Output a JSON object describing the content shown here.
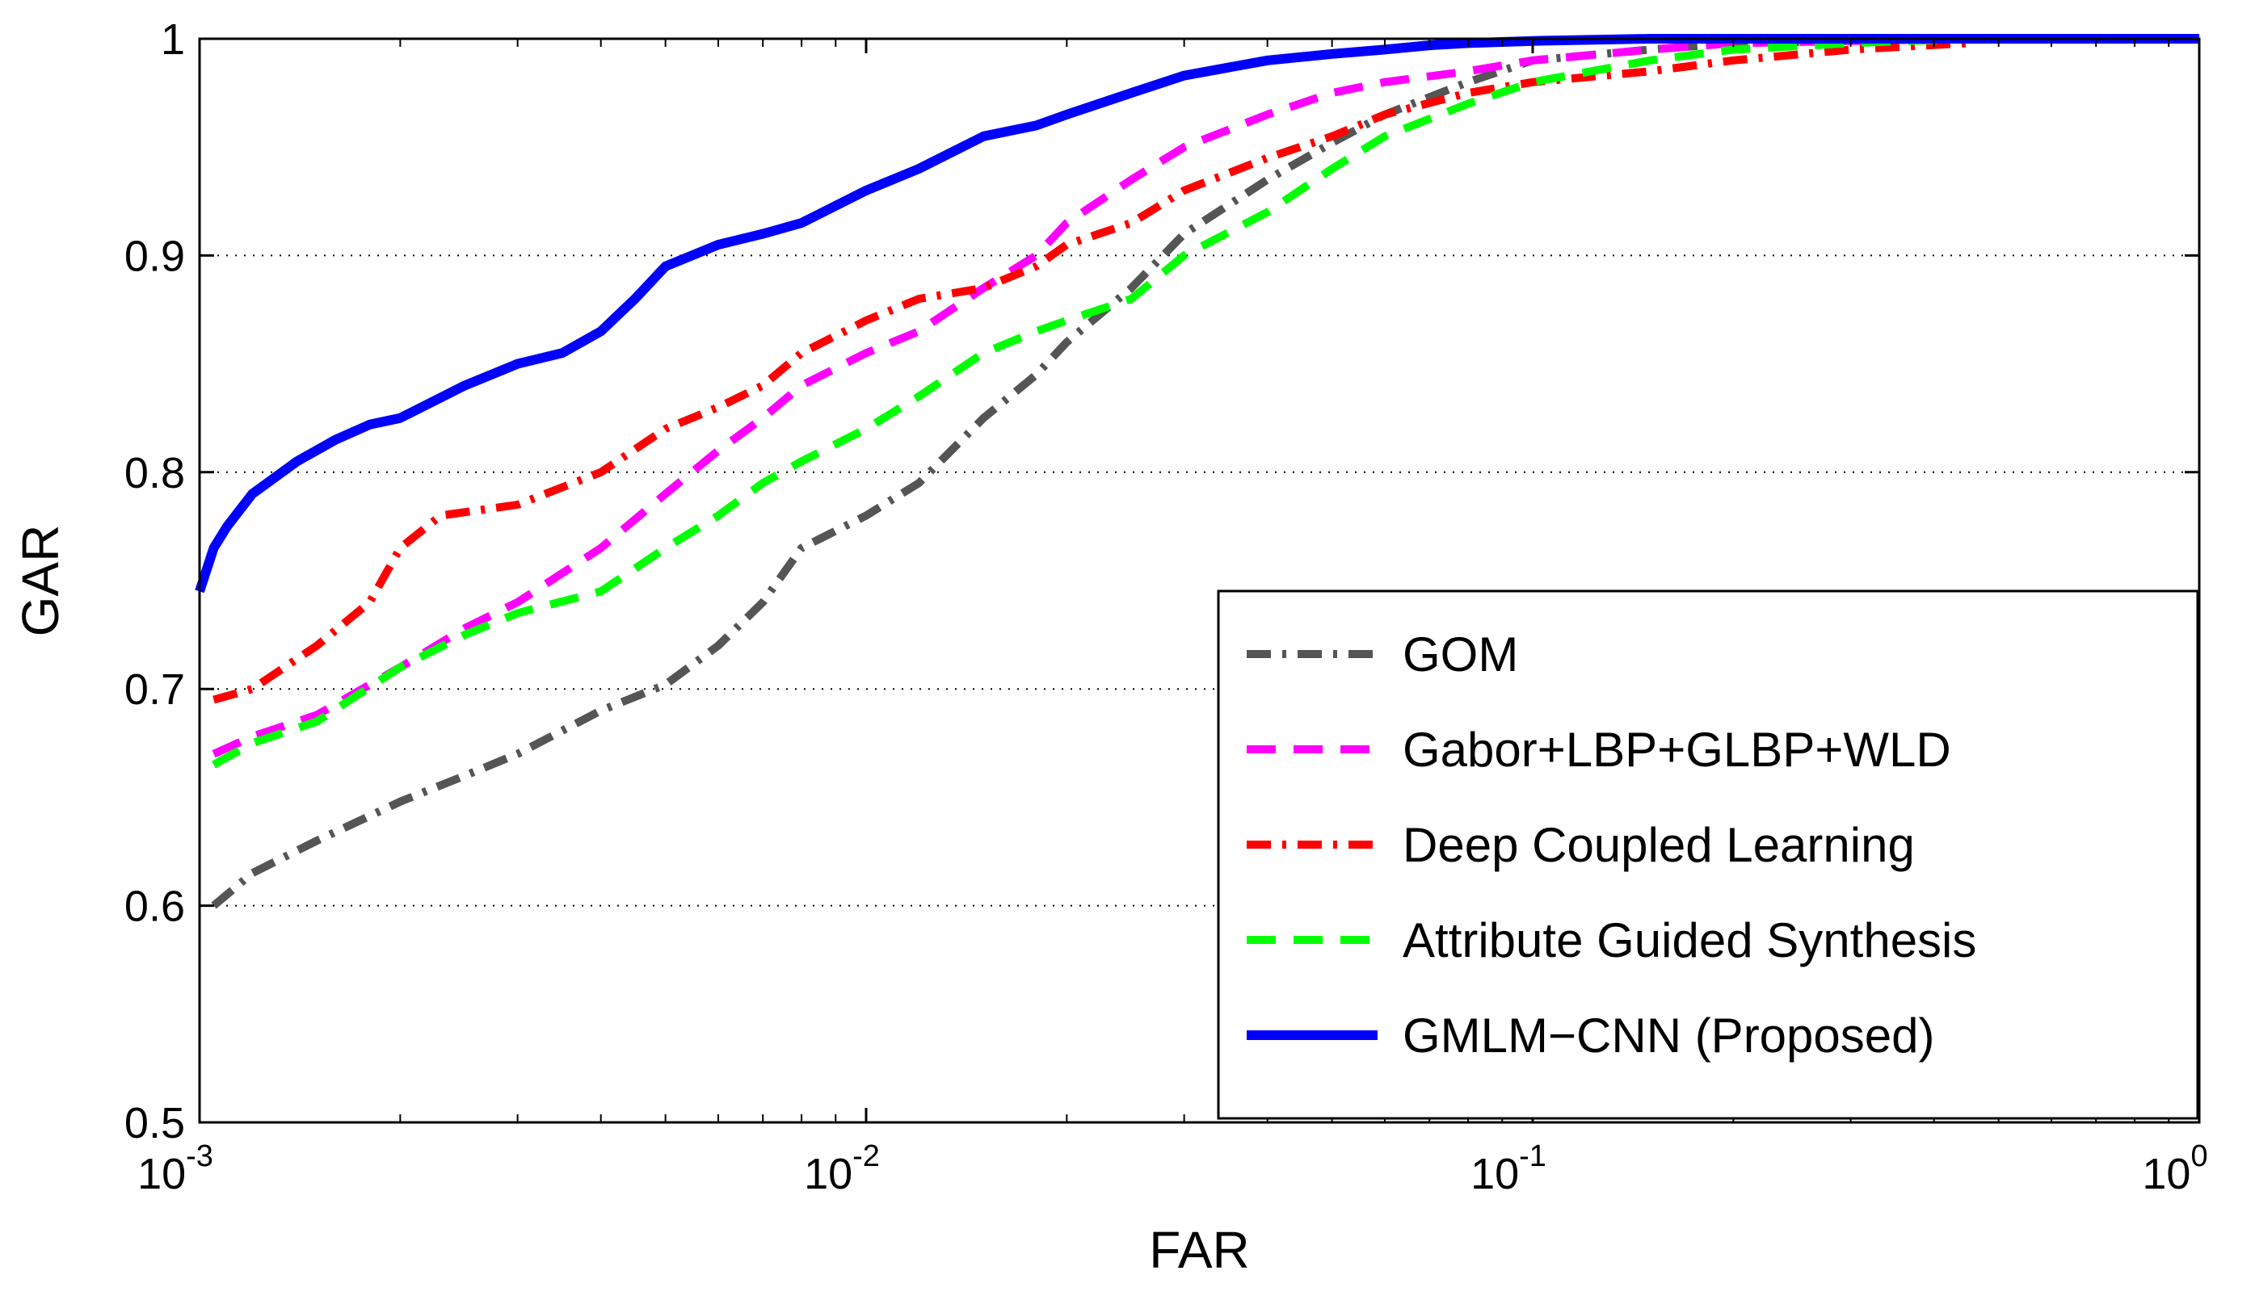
{
  "chart_data": {
    "type": "line",
    "xscale": "log",
    "xlabel": "FAR",
    "ylabel": "GAR",
    "xlim": [
      0.001,
      1
    ],
    "ylim": [
      0.5,
      1
    ],
    "x_ticks": [
      {
        "value": 0.001,
        "base": "10",
        "exp": "-3"
      },
      {
        "value": 0.01,
        "base": "10",
        "exp": "-2"
      },
      {
        "value": 0.1,
        "base": "10",
        "exp": "-1"
      },
      {
        "value": 1,
        "base": "10",
        "exp": "0"
      }
    ],
    "y_ticks": [
      {
        "value": 0.5,
        "label": "0.5"
      },
      {
        "value": 0.6,
        "label": "0.6"
      },
      {
        "value": 0.7,
        "label": "0.7"
      },
      {
        "value": 0.8,
        "label": "0.8"
      },
      {
        "value": 0.9,
        "label": "0.9"
      },
      {
        "value": 1.0,
        "label": "1"
      }
    ],
    "grid": "horizontal-dotted",
    "legend_position": "bottom-right",
    "series": [
      {
        "name": "GOM",
        "color": "#555555",
        "style": "dash-dot",
        "x": [
          0.00105,
          0.0012,
          0.0015,
          0.002,
          0.0025,
          0.003,
          0.004,
          0.005,
          0.006,
          0.007,
          0.008,
          0.01,
          0.012,
          0.015,
          0.018,
          0.02,
          0.025,
          0.03,
          0.04,
          0.05,
          0.06,
          0.08,
          0.1,
          0.15,
          0.2,
          0.3,
          0.45
        ],
        "y": [
          0.6,
          0.615,
          0.63,
          0.648,
          0.66,
          0.67,
          0.69,
          0.702,
          0.72,
          0.74,
          0.765,
          0.78,
          0.795,
          0.825,
          0.845,
          0.86,
          0.885,
          0.91,
          0.935,
          0.952,
          0.965,
          0.98,
          0.99,
          0.995,
          0.998,
          0.999,
          1.0
        ]
      },
      {
        "name": "Gabor+LBP+GLBP+WLD",
        "color": "#ff00ff",
        "style": "dashed",
        "x": [
          0.00105,
          0.0012,
          0.0015,
          0.002,
          0.0025,
          0.003,
          0.004,
          0.005,
          0.006,
          0.007,
          0.008,
          0.01,
          0.012,
          0.015,
          0.018,
          0.02,
          0.025,
          0.03,
          0.04,
          0.05,
          0.06,
          0.08,
          0.1,
          0.15,
          0.2,
          0.3,
          0.45
        ],
        "y": [
          0.67,
          0.678,
          0.688,
          0.71,
          0.728,
          0.74,
          0.765,
          0.79,
          0.81,
          0.825,
          0.84,
          0.855,
          0.865,
          0.885,
          0.9,
          0.915,
          0.935,
          0.95,
          0.965,
          0.975,
          0.98,
          0.985,
          0.99,
          0.995,
          0.998,
          0.999,
          1.0
        ]
      },
      {
        "name": "Deep Coupled Learning",
        "color": "#ff0000",
        "style": "dash-dot",
        "x": [
          0.00105,
          0.0012,
          0.0015,
          0.0018,
          0.002,
          0.0023,
          0.003,
          0.004,
          0.005,
          0.006,
          0.007,
          0.008,
          0.01,
          0.012,
          0.015,
          0.018,
          0.02,
          0.025,
          0.03,
          0.04,
          0.05,
          0.06,
          0.08,
          0.1,
          0.15,
          0.2,
          0.3,
          0.45
        ],
        "y": [
          0.695,
          0.7,
          0.72,
          0.74,
          0.765,
          0.78,
          0.785,
          0.8,
          0.82,
          0.83,
          0.84,
          0.855,
          0.87,
          0.88,
          0.885,
          0.895,
          0.905,
          0.915,
          0.93,
          0.945,
          0.955,
          0.965,
          0.975,
          0.98,
          0.985,
          0.99,
          0.995,
          0.998
        ]
      },
      {
        "name": "Attribute Guided Synthesis",
        "color": "#00ff00",
        "style": "dashed",
        "x": [
          0.00105,
          0.0012,
          0.0015,
          0.002,
          0.0025,
          0.003,
          0.004,
          0.005,
          0.006,
          0.007,
          0.008,
          0.01,
          0.012,
          0.015,
          0.018,
          0.02,
          0.025,
          0.03,
          0.04,
          0.05,
          0.06,
          0.08,
          0.1,
          0.15,
          0.2,
          0.3,
          0.45
        ],
        "y": [
          0.665,
          0.675,
          0.685,
          0.71,
          0.725,
          0.735,
          0.745,
          0.765,
          0.78,
          0.795,
          0.805,
          0.82,
          0.835,
          0.855,
          0.865,
          0.87,
          0.88,
          0.9,
          0.92,
          0.94,
          0.955,
          0.97,
          0.98,
          0.99,
          0.995,
          0.998,
          1.0
        ]
      },
      {
        "name": "GMLM−CNN (Proposed)",
        "color": "#0000ff",
        "style": "solid",
        "x": [
          0.001,
          0.00105,
          0.0011,
          0.0012,
          0.0014,
          0.0016,
          0.0018,
          0.002,
          0.0025,
          0.003,
          0.0035,
          0.004,
          0.0045,
          0.005,
          0.006,
          0.007,
          0.008,
          0.01,
          0.012,
          0.015,
          0.018,
          0.02,
          0.025,
          0.03,
          0.04,
          0.05,
          0.06,
          0.07,
          0.08,
          0.1,
          0.15,
          0.2,
          0.5,
          1.0
        ],
        "y": [
          0.745,
          0.765,
          0.775,
          0.79,
          0.805,
          0.815,
          0.822,
          0.825,
          0.84,
          0.85,
          0.855,
          0.865,
          0.88,
          0.895,
          0.905,
          0.91,
          0.915,
          0.93,
          0.94,
          0.955,
          0.96,
          0.965,
          0.975,
          0.983,
          0.99,
          0.993,
          0.995,
          0.997,
          0.998,
          0.999,
          1.0,
          1.0,
          1.0,
          1.0
        ]
      }
    ]
  }
}
